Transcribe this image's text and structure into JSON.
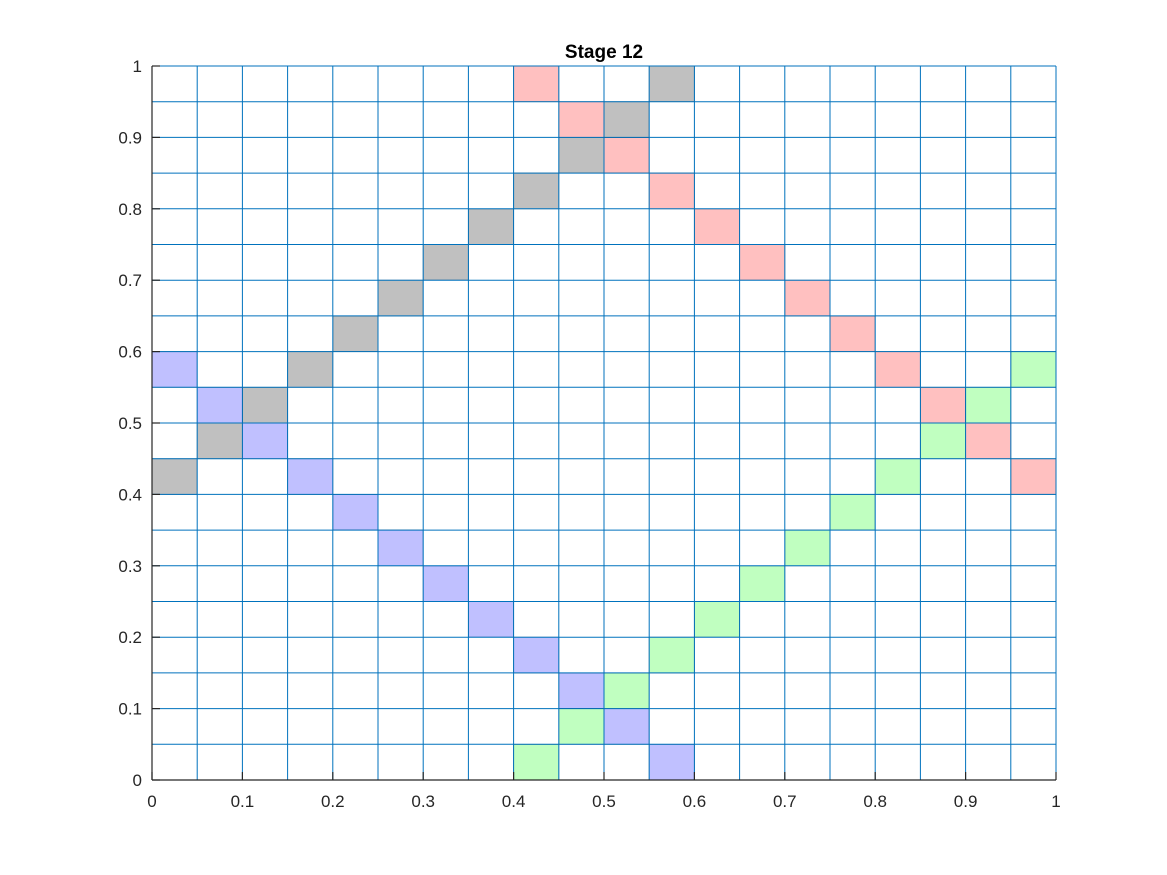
{
  "chart_data": {
    "type": "heatmap",
    "title": "Stage 12",
    "xlabel": "",
    "ylabel": "",
    "xlim": [
      0,
      1
    ],
    "ylim": [
      0,
      1
    ],
    "xticks": [
      "0",
      "0.1",
      "0.2",
      "0.3",
      "0.4",
      "0.5",
      "0.6",
      "0.7",
      "0.8",
      "0.9",
      "1"
    ],
    "yticks": [
      "0",
      "0.1",
      "0.2",
      "0.3",
      "0.4",
      "0.5",
      "0.6",
      "0.7",
      "0.8",
      "0.9",
      "1"
    ],
    "grid": true,
    "grid_cols": 20,
    "grid_rows": 20,
    "grid_color": "#0072BD",
    "cell_colors": {
      "red": "#FFC0C0",
      "gray": "#C0C0C0",
      "blue": "#C0C0FF",
      "green": "#C0FFC0"
    },
    "cells": [
      {
        "x": 0.4,
        "y": 0.95,
        "color": "red"
      },
      {
        "x": 0.45,
        "y": 0.9,
        "color": "red"
      },
      {
        "x": 0.5,
        "y": 0.85,
        "color": "red"
      },
      {
        "x": 0.55,
        "y": 0.8,
        "color": "red"
      },
      {
        "x": 0.6,
        "y": 0.75,
        "color": "red"
      },
      {
        "x": 0.65,
        "y": 0.7,
        "color": "red"
      },
      {
        "x": 0.7,
        "y": 0.65,
        "color": "red"
      },
      {
        "x": 0.75,
        "y": 0.6,
        "color": "red"
      },
      {
        "x": 0.8,
        "y": 0.55,
        "color": "red"
      },
      {
        "x": 0.85,
        "y": 0.5,
        "color": "red"
      },
      {
        "x": 0.9,
        "y": 0.45,
        "color": "red"
      },
      {
        "x": 0.95,
        "y": 0.4,
        "color": "red"
      },
      {
        "x": 0.55,
        "y": 0.95,
        "color": "gray"
      },
      {
        "x": 0.5,
        "y": 0.9,
        "color": "gray"
      },
      {
        "x": 0.45,
        "y": 0.85,
        "color": "gray"
      },
      {
        "x": 0.4,
        "y": 0.8,
        "color": "gray"
      },
      {
        "x": 0.35,
        "y": 0.75,
        "color": "gray"
      },
      {
        "x": 0.3,
        "y": 0.7,
        "color": "gray"
      },
      {
        "x": 0.25,
        "y": 0.65,
        "color": "gray"
      },
      {
        "x": 0.2,
        "y": 0.6,
        "color": "gray"
      },
      {
        "x": 0.15,
        "y": 0.55,
        "color": "gray"
      },
      {
        "x": 0.1,
        "y": 0.5,
        "color": "gray"
      },
      {
        "x": 0.05,
        "y": 0.45,
        "color": "gray"
      },
      {
        "x": 0.0,
        "y": 0.4,
        "color": "gray"
      },
      {
        "x": 0.0,
        "y": 0.55,
        "color": "blue"
      },
      {
        "x": 0.05,
        "y": 0.5,
        "color": "blue"
      },
      {
        "x": 0.1,
        "y": 0.45,
        "color": "blue"
      },
      {
        "x": 0.15,
        "y": 0.4,
        "color": "blue"
      },
      {
        "x": 0.2,
        "y": 0.35,
        "color": "blue"
      },
      {
        "x": 0.25,
        "y": 0.3,
        "color": "blue"
      },
      {
        "x": 0.3,
        "y": 0.25,
        "color": "blue"
      },
      {
        "x": 0.35,
        "y": 0.2,
        "color": "blue"
      },
      {
        "x": 0.4,
        "y": 0.15,
        "color": "blue"
      },
      {
        "x": 0.45,
        "y": 0.1,
        "color": "blue"
      },
      {
        "x": 0.5,
        "y": 0.05,
        "color": "blue"
      },
      {
        "x": 0.55,
        "y": 0.0,
        "color": "blue"
      },
      {
        "x": 0.4,
        "y": 0.0,
        "color": "green"
      },
      {
        "x": 0.45,
        "y": 0.05,
        "color": "green"
      },
      {
        "x": 0.5,
        "y": 0.1,
        "color": "green"
      },
      {
        "x": 0.55,
        "y": 0.15,
        "color": "green"
      },
      {
        "x": 0.6,
        "y": 0.2,
        "color": "green"
      },
      {
        "x": 0.65,
        "y": 0.25,
        "color": "green"
      },
      {
        "x": 0.7,
        "y": 0.3,
        "color": "green"
      },
      {
        "x": 0.75,
        "y": 0.35,
        "color": "green"
      },
      {
        "x": 0.8,
        "y": 0.4,
        "color": "green"
      },
      {
        "x": 0.85,
        "y": 0.45,
        "color": "green"
      },
      {
        "x": 0.9,
        "y": 0.5,
        "color": "green"
      },
      {
        "x": 0.95,
        "y": 0.55,
        "color": "green"
      }
    ]
  }
}
